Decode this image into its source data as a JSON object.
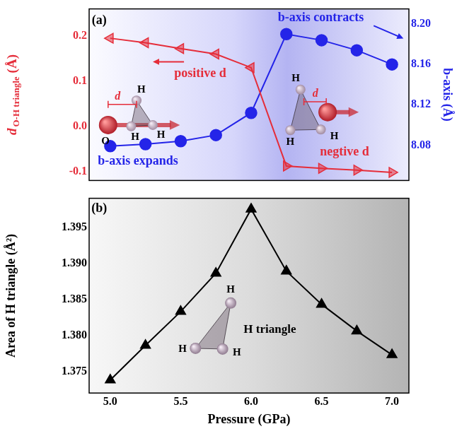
{
  "chart_data": [
    {
      "type": "line",
      "panel": "(a)",
      "x": [
        5.0,
        5.25,
        5.5,
        5.75,
        6.0,
        6.25,
        6.5,
        6.75,
        7.0
      ],
      "xlim": [
        4.85,
        7.12
      ],
      "y_label": {
        "main": "d",
        "sub": "O-H triangle",
        "unit": "(Å)"
      },
      "y2_label": "b-axis (Å)",
      "ylim": [
        -0.12,
        0.26
      ],
      "yticks": [
        -0.1,
        {
          "value": 0,
          "label": "0.0"
        },
        0.1,
        0.2
      ],
      "y2lim": [
        8.045,
        8.215
      ],
      "y2ticks": [
        8.08,
        8.12,
        8.16,
        {
          "value": 8.2,
          "label": "8.20"
        }
      ],
      "grid": false,
      "series": [
        {
          "color": "#e52d3a",
          "marker": "triangle",
          "values": [
            0.195,
            0.185,
            0.172,
            0.16,
            0.13,
            -0.088,
            -0.093,
            -0.097,
            -0.102
          ]
        },
        {
          "color": "#2424e8",
          "marker": "circle",
          "axis": "y2",
          "values": [
            8.079,
            8.081,
            8.084,
            8.09,
            8.112,
            8.19,
            8.184,
            8.174,
            8.16
          ]
        }
      ],
      "annotations": [
        {
          "text": "positive d",
          "color": "#e52d3a"
        },
        {
          "text": "negtive d",
          "color": "#e52d3a"
        },
        {
          "text": "b-axis expands",
          "color": "#2424e8"
        },
        {
          "text": "b-axis contracts",
          "color": "#2424e8"
        }
      ],
      "insets": [
        {
          "labels": [
            "H",
            "O",
            "H",
            "H",
            "d"
          ]
        },
        {
          "labels": [
            "H",
            "H",
            "H",
            "d"
          ]
        }
      ]
    },
    {
      "type": "line",
      "panel": "(b)",
      "x": [
        5.0,
        5.25,
        5.5,
        5.75,
        6.0,
        6.25,
        6.5,
        6.75,
        7.0
      ],
      "xlim": [
        4.85,
        7.12
      ],
      "xticks": [
        {
          "value": 5,
          "label": "5.0"
        },
        5.5,
        {
          "value": 6,
          "label": "6.0"
        },
        6.5,
        {
          "value": 7,
          "label": "7.0"
        }
      ],
      "x_label": "Pressure (GPa)",
      "y_label": "Area of H triangle (Å²)",
      "ylim": [
        1.372,
        1.399
      ],
      "yticks": [
        1.375,
        {
          "value": 1.38,
          "label": "1.380"
        },
        1.385,
        {
          "value": 1.39,
          "label": "1.390"
        },
        1.395
      ],
      "grid": false,
      "series": [
        {
          "color": "#000000",
          "marker": "triangle",
          "values": [
            1.3738,
            1.3786,
            1.3833,
            1.3886,
            1.3975,
            1.3889,
            1.3843,
            1.3806,
            1.3773
          ]
        }
      ],
      "insets": [
        {
          "labels": [
            "H",
            "H",
            "H"
          ],
          "caption": "H triangle"
        }
      ]
    }
  ]
}
